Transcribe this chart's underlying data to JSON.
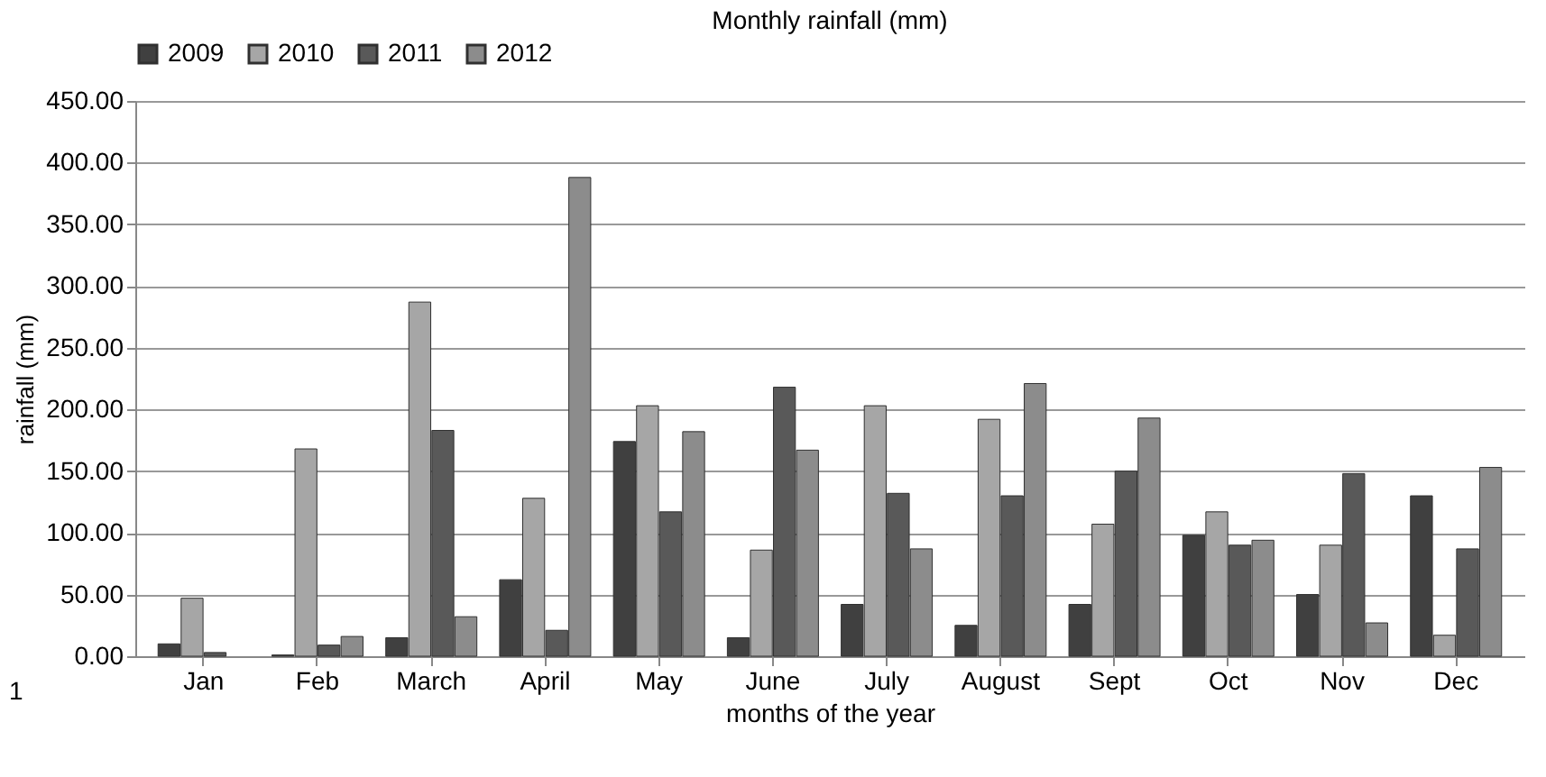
{
  "chart_data": {
    "type": "bar",
    "title": "Monthly rainfall (mm)",
    "xlabel": "months of the year",
    "ylabel": "rainfall (mm)",
    "categories": [
      "Jan",
      "Feb",
      "March",
      "April",
      "May",
      "June",
      "July",
      "August",
      "Sept",
      "Oct",
      "Nov",
      "Dec"
    ],
    "series": [
      {
        "name": "2009",
        "color": "#404040",
        "values": [
          10,
          1,
          15,
          62,
          174,
          15,
          42,
          25,
          42,
          98,
          50,
          130
        ]
      },
      {
        "name": "2010",
        "color": "#a6a6a6",
        "values": [
          47,
          168,
          287,
          128,
          203,
          86,
          203,
          192,
          107,
          117,
          90,
          17
        ]
      },
      {
        "name": "2011",
        "color": "#595959",
        "values": [
          3,
          9,
          183,
          21,
          117,
          218,
          132,
          130,
          150,
          90,
          148,
          87
        ]
      },
      {
        "name": "2012",
        "color": "#8c8c8c",
        "values": [
          null,
          16,
          32,
          388,
          182,
          167,
          87,
          221,
          193,
          94,
          27,
          153
        ]
      }
    ],
    "ylim": [
      0,
      450
    ],
    "yticks": [
      {
        "value": 0,
        "label": "0.00"
      },
      {
        "value": 50,
        "label": "50.00"
      },
      {
        "value": 100,
        "label": "100.00"
      },
      {
        "value": 150,
        "label": "150.00"
      },
      {
        "value": 200,
        "label": "200.00"
      },
      {
        "value": 250,
        "label": "250.00"
      },
      {
        "value": 300,
        "label": "300.00"
      },
      {
        "value": 350,
        "label": "350.00"
      },
      {
        "value": 400,
        "label": "400.00"
      },
      {
        "value": 450,
        "label": "450.00"
      }
    ],
    "grid": "y",
    "legend": "top",
    "annotations": [
      "1"
    ]
  }
}
